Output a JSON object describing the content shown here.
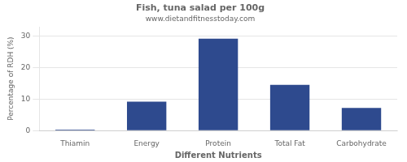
{
  "chart_data": {
    "type": "bar",
    "title": "Fish, tuna salad per 100g",
    "subtitle": "www.dietandfitnesstoday.com",
    "categories": [
      "Thiamin",
      "Energy",
      "Protein",
      "Total Fat",
      "Carbohydrate"
    ],
    "values": [
      0.3,
      9.2,
      29.2,
      14.5,
      7.2
    ],
    "color": "#2e4a8e",
    "xlabel": "Different Nutrients",
    "ylabel": "Percentage of RDH (%)",
    "ylim": [
      0,
      33
    ],
    "yticks": [
      0,
      10,
      20,
      30
    ],
    "grid": true
  }
}
